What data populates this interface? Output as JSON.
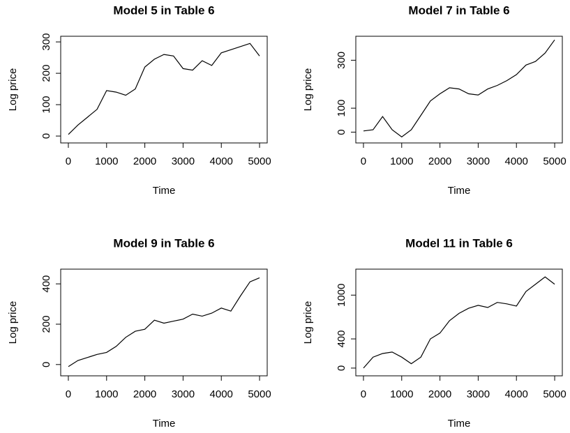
{
  "chart_data": [
    {
      "type": "line",
      "title": "Model 5 in Table 6",
      "x_label": "Time",
      "y_label": "Log price",
      "color": "#000000",
      "x": [
        0,
        250,
        500,
        750,
        1000,
        1250,
        1500,
        1750,
        2000,
        2250,
        2500,
        2750,
        3000,
        3250,
        3500,
        3750,
        4000,
        4250,
        4500,
        4750,
        5000
      ],
      "values": [
        5,
        35,
        60,
        85,
        145,
        140,
        130,
        150,
        220,
        245,
        260,
        255,
        215,
        210,
        240,
        225,
        265,
        275,
        285,
        295,
        255
      ],
      "xlim": [
        -200,
        5200
      ],
      "ylim": [
        -22,
        318
      ],
      "xticks": [
        0,
        1000,
        2000,
        3000,
        4000,
        5000
      ],
      "yticks": [
        0,
        100,
        200,
        300
      ]
    },
    {
      "type": "line",
      "title": "Model 7 in Table 6",
      "x_label": "Time",
      "y_label": "Log price",
      "color": "#000000",
      "x": [
        0,
        250,
        500,
        750,
        1000,
        1250,
        1500,
        1750,
        2000,
        2250,
        2500,
        2750,
        3000,
        3250,
        3500,
        3750,
        4000,
        4250,
        4500,
        4750,
        5000
      ],
      "values": [
        5,
        10,
        65,
        10,
        -20,
        10,
        70,
        130,
        160,
        185,
        180,
        160,
        155,
        180,
        195,
        215,
        240,
        280,
        295,
        330,
        385
      ],
      "xlim": [
        -200,
        5200
      ],
      "ylim": [
        -45,
        400
      ],
      "xticks": [
        0,
        1000,
        2000,
        3000,
        4000,
        5000
      ],
      "yticks": [
        0,
        100,
        300
      ]
    },
    {
      "type": "line",
      "title": "Model 9 in Table 6",
      "x_label": "Time",
      "y_label": "Log price",
      "color": "#000000",
      "x": [
        0,
        250,
        500,
        750,
        1000,
        1250,
        1500,
        1750,
        2000,
        2250,
        2500,
        2750,
        3000,
        3250,
        3500,
        3750,
        4000,
        4250,
        4500,
        4750,
        5000
      ],
      "values": [
        -10,
        20,
        35,
        50,
        60,
        90,
        135,
        165,
        175,
        220,
        205,
        215,
        225,
        250,
        240,
        255,
        280,
        265,
        340,
        410,
        430
      ],
      "xlim": [
        -200,
        5200
      ],
      "ylim": [
        -56,
        473
      ],
      "xticks": [
        0,
        1000,
        2000,
        3000,
        4000,
        5000
      ],
      "yticks": [
        0,
        200,
        400
      ]
    },
    {
      "type": "line",
      "title": "Model 11 in Table 6",
      "x_label": "Time",
      "y_label": "Log price",
      "color": "#000000",
      "x": [
        0,
        250,
        500,
        750,
        1000,
        1250,
        1500,
        1750,
        2000,
        2250,
        2500,
        2750,
        3000,
        3250,
        3500,
        3750,
        4000,
        4250,
        4500,
        4750,
        5000
      ],
      "values": [
        0,
        150,
        200,
        220,
        150,
        60,
        150,
        400,
        480,
        650,
        750,
        820,
        860,
        830,
        900,
        880,
        850,
        1050,
        1150,
        1250,
        1150
      ],
      "xlim": [
        -200,
        5200
      ],
      "ylim": [
        -106,
        1356
      ],
      "xticks": [
        0,
        1000,
        2000,
        3000,
        4000,
        5000
      ],
      "yticks": [
        0,
        400,
        1000
      ]
    }
  ]
}
